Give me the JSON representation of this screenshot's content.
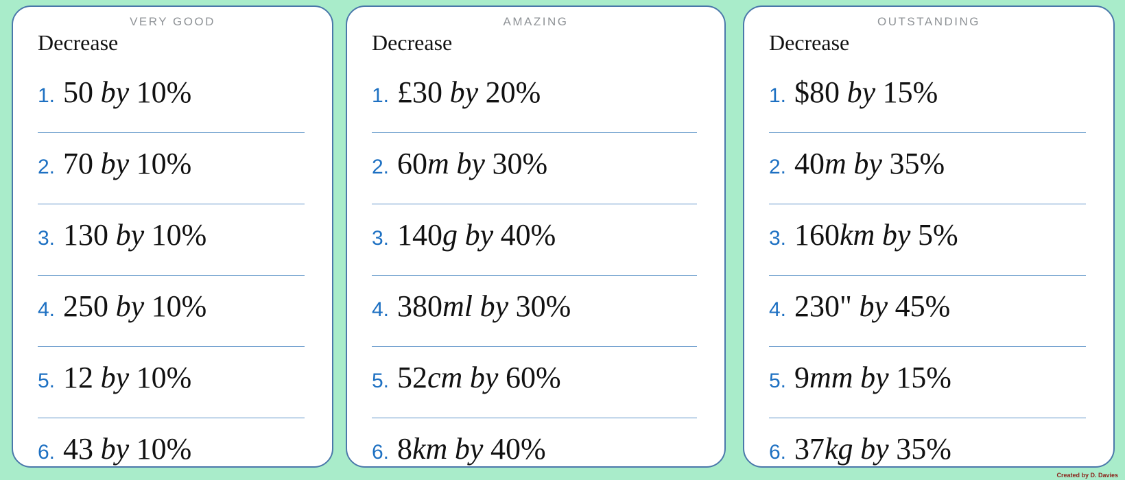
{
  "credit": "Created by D. Davies",
  "colors": {
    "background": "#a9ecca",
    "card_border": "#4a78aa",
    "separator": "#5b92c7",
    "number_blue": "#1d70c2",
    "header_gray": "#8e9296",
    "credit_maroon": "#8b241c"
  },
  "cards": [
    {
      "header": "VERY GOOD",
      "title": "Decrease",
      "items": [
        {
          "num": "1.",
          "pre": "50",
          "unit": "",
          "by": "by",
          "pct": "10%"
        },
        {
          "num": "2.",
          "pre": "70",
          "unit": "",
          "by": "by",
          "pct": "10%"
        },
        {
          "num": "3.",
          "pre": "130",
          "unit": "",
          "by": "by",
          "pct": "10%"
        },
        {
          "num": "4.",
          "pre": "250",
          "unit": "",
          "by": "by",
          "pct": "10%"
        },
        {
          "num": "5.",
          "pre": "12",
          "unit": "",
          "by": "by",
          "pct": "10%"
        },
        {
          "num": "6.",
          "pre": "43",
          "unit": "",
          "by": "by",
          "pct": "10%"
        }
      ]
    },
    {
      "header": "AMAZING",
      "title": "Decrease",
      "items": [
        {
          "num": "1.",
          "pre": "£30",
          "unit": "",
          "by": "by",
          "pct": "20%"
        },
        {
          "num": "2.",
          "pre": "60",
          "unit": "m",
          "by": "by",
          "pct": "30%"
        },
        {
          "num": "3.",
          "pre": "140",
          "unit": "g",
          "by": "by",
          "pct": "40%"
        },
        {
          "num": "4.",
          "pre": "380",
          "unit": "ml",
          "by": "by",
          "pct": "30%"
        },
        {
          "num": "5.",
          "pre": "52",
          "unit": "cm",
          "by": "by",
          "pct": "60%"
        },
        {
          "num": "6.",
          "pre": "8",
          "unit": "km",
          "by": "by",
          "pct": "40%"
        }
      ]
    },
    {
      "header": "OUTSTANDING",
      "title": "Decrease",
      "items": [
        {
          "num": "1.",
          "pre": "$80",
          "unit": "",
          "by": "by",
          "pct": "15%"
        },
        {
          "num": "2.",
          "pre": "40",
          "unit": "m",
          "by": "by",
          "pct": "35%"
        },
        {
          "num": "3.",
          "pre": "160",
          "unit": "km",
          "by": "by",
          "pct": "5%"
        },
        {
          "num": "4.",
          "pre": "230\"",
          "unit": "",
          "by": "by",
          "pct": "45%"
        },
        {
          "num": "5.",
          "pre": "9",
          "unit": "mm",
          "by": "by",
          "pct": "15%"
        },
        {
          "num": "6.",
          "pre": "37",
          "unit": "kg",
          "by": "by",
          "pct": "35%"
        }
      ]
    }
  ]
}
